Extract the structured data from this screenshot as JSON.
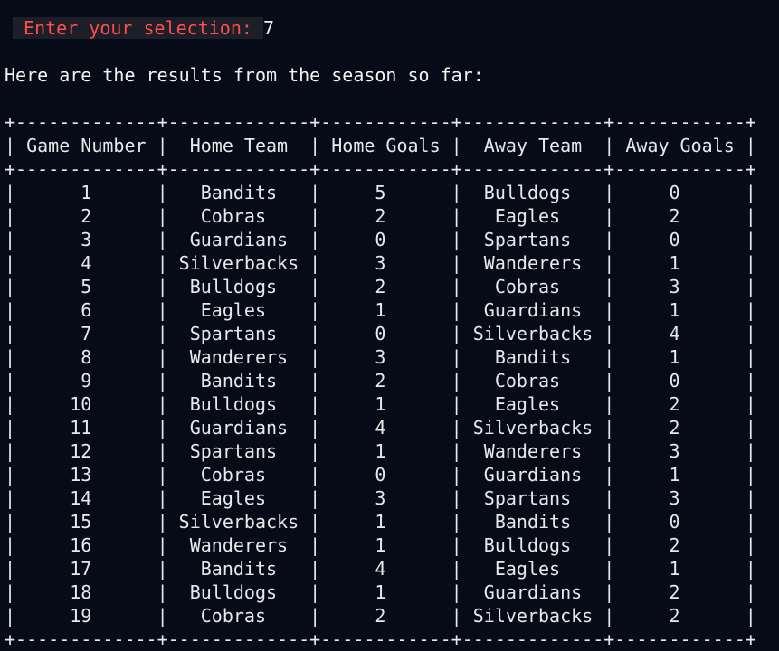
{
  "prompt": {
    "label": " Enter your selection: ",
    "value": "7"
  },
  "intro_text": "Here are the results from the season so far:",
  "table": {
    "headers": [
      "Game Number",
      "Home Team",
      "Home Goals",
      "Away Team",
      "Away Goals"
    ],
    "rows": [
      [
        "1",
        "Bandits",
        "5",
        "Bulldogs",
        "0"
      ],
      [
        "2",
        "Cobras",
        "2",
        "Eagles",
        "2"
      ],
      [
        "3",
        "Guardians",
        "0",
        "Spartans",
        "0"
      ],
      [
        "4",
        "Silverbacks",
        "3",
        "Wanderers",
        "1"
      ],
      [
        "5",
        "Bulldogs",
        "2",
        "Cobras",
        "3"
      ],
      [
        "6",
        "Eagles",
        "1",
        "Guardians",
        "1"
      ],
      [
        "7",
        "Spartans",
        "0",
        "Silverbacks",
        "4"
      ],
      [
        "8",
        "Wanderers",
        "3",
        "Bandits",
        "1"
      ],
      [
        "9",
        "Bandits",
        "2",
        "Cobras",
        "0"
      ],
      [
        "10",
        "Bulldogs",
        "1",
        "Eagles",
        "2"
      ],
      [
        "11",
        "Guardians",
        "4",
        "Silverbacks",
        "2"
      ],
      [
        "12",
        "Spartans",
        "1",
        "Wanderers",
        "3"
      ],
      [
        "13",
        "Cobras",
        "0",
        "Guardians",
        "1"
      ],
      [
        "14",
        "Eagles",
        "3",
        "Spartans",
        "3"
      ],
      [
        "15",
        "Silverbacks",
        "1",
        "Bandits",
        "0"
      ],
      [
        "16",
        "Wanderers",
        "1",
        "Bulldogs",
        "2"
      ],
      [
        "17",
        "Bandits",
        "4",
        "Eagles",
        "1"
      ],
      [
        "18",
        "Bulldogs",
        "1",
        "Guardians",
        "2"
      ],
      [
        "19",
        "Cobras",
        "2",
        "Silverbacks",
        "2"
      ]
    ]
  },
  "colors": {
    "background": "#050c17",
    "prompt_label": "#ff4d4d",
    "prompt_background": "#1c1f27",
    "text": "#e8e8ec"
  }
}
